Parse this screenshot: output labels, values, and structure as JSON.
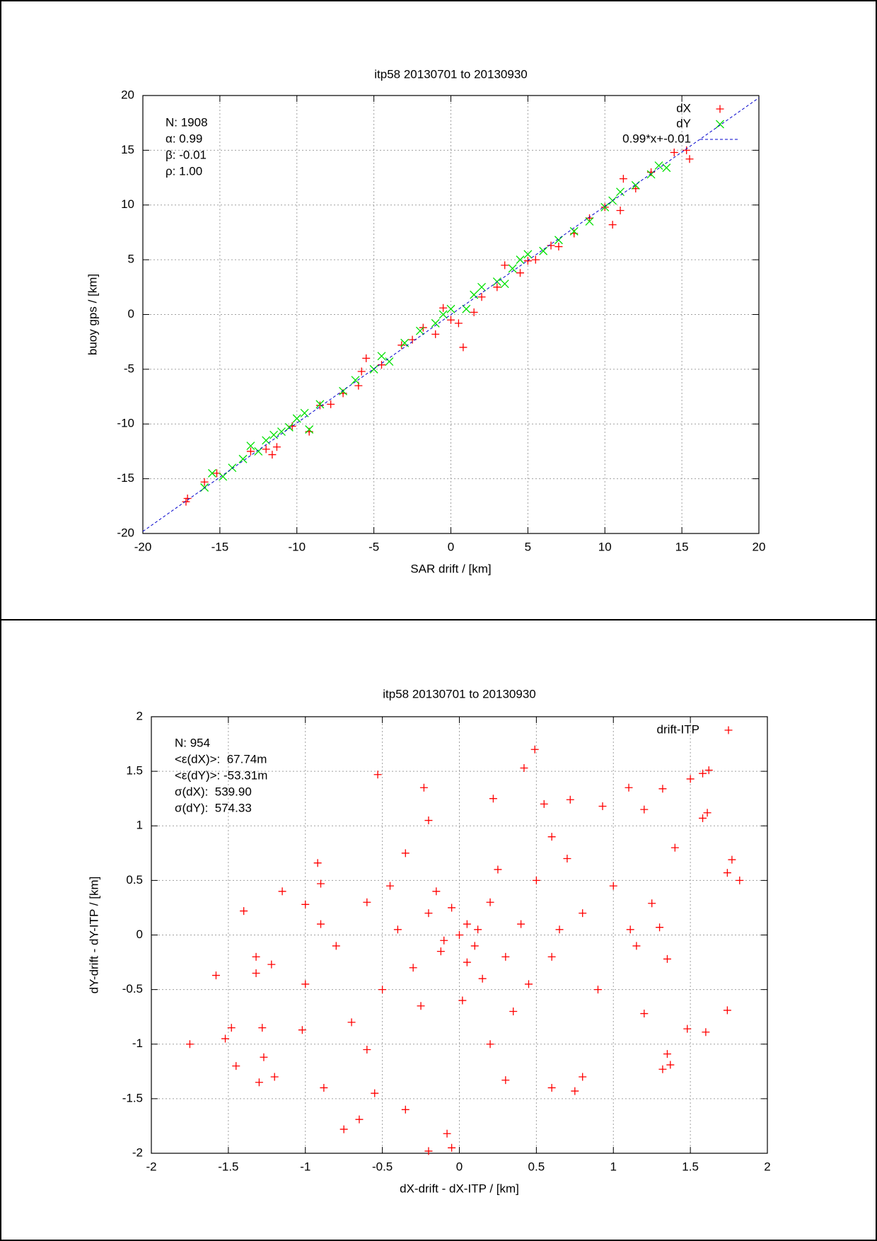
{
  "chart_data": [
    {
      "type": "scatter",
      "title": "itp58 20130701 to 20130930",
      "x_label": "SAR drift / [km]",
      "y_label": "buoy gps / [km]",
      "xlim": [
        -20,
        20
      ],
      "ylim": [
        -20,
        20
      ],
      "xticks": [
        -20,
        -15,
        -10,
        -5,
        0,
        5,
        10,
        15,
        20
      ],
      "yticks": [
        -20,
        -15,
        -10,
        -5,
        0,
        5,
        10,
        15,
        20
      ],
      "grid": true,
      "legend": "upper right",
      "annotations": [
        "N: 1908",
        "α: 0.99",
        "β: -0.01",
        "ρ: 1.00"
      ],
      "series": [
        {
          "name": "dX",
          "color": "#ff0000",
          "marker": "plus",
          "x": [
            -17.2,
            -17.1,
            -16,
            -15.2,
            -13,
            -12,
            -11.6,
            -11.3,
            -10.3,
            -9.2,
            -8.5,
            -7.8,
            -7,
            -6,
            -5.8,
            -5.5,
            -4.5,
            -3.2,
            -2.5,
            -1.8,
            -1,
            -0.5,
            0,
            0.5,
            0.8,
            1.5,
            2,
            3,
            3.5,
            4.5,
            5,
            5.5,
            6.5,
            7,
            8,
            9,
            10,
            10.5,
            11,
            11.2,
            12,
            13,
            14.5,
            15.3,
            15.5
          ],
          "values": [
            -17.1,
            -16.8,
            -15.3,
            -14.5,
            -12.5,
            -12.3,
            -12.8,
            -12.1,
            -10.2,
            -10.7,
            -8.3,
            -8.2,
            -7.2,
            -6.5,
            -5.2,
            -4,
            -4.6,
            -2.8,
            -2.3,
            -1.2,
            -1.8,
            0.6,
            -0.5,
            -0.8,
            -3,
            0.2,
            1.6,
            2.5,
            4.5,
            3.8,
            4.9,
            5,
            6.3,
            6.2,
            7.4,
            8.8,
            9.8,
            8.2,
            9.5,
            12.4,
            11.5,
            13,
            14.8,
            15,
            14.2
          ]
        },
        {
          "name": "dY",
          "color": "#00e000",
          "marker": "cross",
          "x": [
            -16,
            -15.5,
            -14.8,
            -14.2,
            -13.5,
            -13,
            -12.5,
            -12,
            -11.5,
            -11,
            -10.5,
            -10,
            -9.5,
            -9.2,
            -8.5,
            -7,
            -6.2,
            -5,
            -4.5,
            -4,
            -3,
            -2,
            -1,
            -0.5,
            0,
            1,
            1.5,
            2,
            3,
            3.5,
            4,
            4.5,
            5,
            6,
            7,
            8,
            9,
            10,
            10.5,
            11,
            12,
            13,
            13.5,
            14
          ],
          "values": [
            -15.8,
            -14.5,
            -14.8,
            -14,
            -13.2,
            -12,
            -12.5,
            -11.5,
            -11,
            -10.7,
            -10.3,
            -9.5,
            -9,
            -10.5,
            -8.2,
            -7,
            -6,
            -5,
            -3.8,
            -4.3,
            -2.6,
            -1.5,
            -0.8,
            0,
            0.5,
            0.5,
            1.8,
            2.5,
            3,
            2.8,
            4.2,
            5,
            5.5,
            5.8,
            6.8,
            7.6,
            8.5,
            9.8,
            10.4,
            11.2,
            11.8,
            12.8,
            13.6,
            13.4
          ]
        },
        {
          "name": "0.99*x+-0.01",
          "color": "#0000cc",
          "marker": "dashed-line",
          "x": [
            -20,
            20
          ],
          "values": [
            -19.81,
            19.79
          ]
        }
      ]
    },
    {
      "type": "scatter",
      "title": "itp58 20130701 to 20130930",
      "x_label": "dX-drift - dX-ITP / [km]",
      "y_label": "dY-drift - dY-ITP / [km]",
      "xlim": [
        -2,
        2
      ],
      "ylim": [
        -2,
        2
      ],
      "xticks": [
        -2,
        -1.5,
        -1,
        -0.5,
        0,
        0.5,
        1,
        1.5,
        2
      ],
      "yticks": [
        -2,
        -1.5,
        -1,
        -0.5,
        0,
        0.5,
        1,
        1.5,
        2
      ],
      "grid": true,
      "legend": "upper right",
      "annotations": [
        "N: 954",
        "<ε(dX)>:  67.74m",
        "<ε(dY)>: -53.31m",
        "σ(dX):  539.90",
        "σ(dY):  574.33"
      ],
      "series": [
        {
          "name": "drift-ITP",
          "color": "#ff0000",
          "marker": "plus",
          "x": [
            -1.75,
            -1.58,
            -1.52,
            -1.48,
            -1.45,
            -1.4,
            -1.32,
            -1.32,
            -1.3,
            -1.28,
            -1.27,
            -1.22,
            -1.2,
            -1,
            -1.02,
            -0.92,
            -0.9,
            -0.88,
            -0.75,
            -0.65,
            -0.53,
            -0.23,
            -0.2,
            -0.08,
            -0.05,
            0.42,
            0.49,
            0.22,
            0.55,
            0.72,
            0.93,
            1.1,
            1.2,
            1.32,
            1.5,
            1.58,
            1.62,
            1.61,
            1.58,
            1.77,
            1.82,
            1.74,
            1.74,
            1.6,
            1.48,
            1.35,
            1.37,
            1.32,
            1.2,
            1.11,
            1.15,
            1.3,
            1.35,
            1.4,
            1.25,
            0.8,
            0.75,
            0.6,
            0.3,
            -0.35,
            -0.55,
            -1.15,
            0,
            0.05,
            -0.1,
            0.1,
            -0.2,
            0.2,
            -0.3,
            0.3,
            -0.15,
            0.15,
            0.4,
            -0.4,
            0.5,
            -0.5,
            0.6,
            -0.6,
            0.25,
            -0.25,
            0.7,
            -0.7,
            0.35,
            -0.35,
            0.8,
            -0.8,
            0.05,
            -0.05,
            0.45,
            -0.45,
            0.9,
            -0.9,
            0.12,
            -0.12,
            0.02,
            0.6,
            -0.6,
            1,
            -1,
            0.2,
            -0.2,
            0.65
          ],
          "values": [
            -1,
            -0.37,
            -0.95,
            -0.85,
            -1.2,
            0.22,
            -0.2,
            -0.35,
            -1.35,
            -0.85,
            -1.12,
            -0.27,
            -1.3,
            0.28,
            -0.87,
            0.66,
            0.47,
            -1.4,
            -1.78,
            -1.69,
            1.47,
            1.35,
            -1.98,
            -1.82,
            -1.95,
            1.53,
            1.7,
            1.25,
            1.2,
            1.24,
            1.18,
            1.35,
            1.15,
            1.34,
            1.43,
            1.48,
            1.51,
            1.12,
            1.07,
            0.69,
            0.5,
            0.57,
            -0.69,
            -0.89,
            -0.86,
            -1.09,
            -1.19,
            -1.23,
            -0.72,
            0.05,
            -0.1,
            0.07,
            -0.22,
            0.8,
            0.29,
            -1.3,
            -1.43,
            -1.4,
            -1.33,
            -1.6,
            -1.45,
            0.4,
            0,
            0.1,
            -0.05,
            -0.1,
            0.2,
            0.3,
            -0.3,
            -0.2,
            0.4,
            -0.4,
            0.1,
            0.05,
            0.5,
            -0.5,
            -0.2,
            0.3,
            0.6,
            -0.65,
            0.7,
            -0.8,
            -0.7,
            0.75,
            0.2,
            -0.1,
            -0.25,
            0.25,
            -0.45,
            0.45,
            -0.5,
            0.1,
            0.05,
            -0.15,
            -0.6,
            0.9,
            -1.05,
            0.45,
            -0.45,
            -1,
            1.05,
            0.05
          ]
        }
      ]
    }
  ]
}
